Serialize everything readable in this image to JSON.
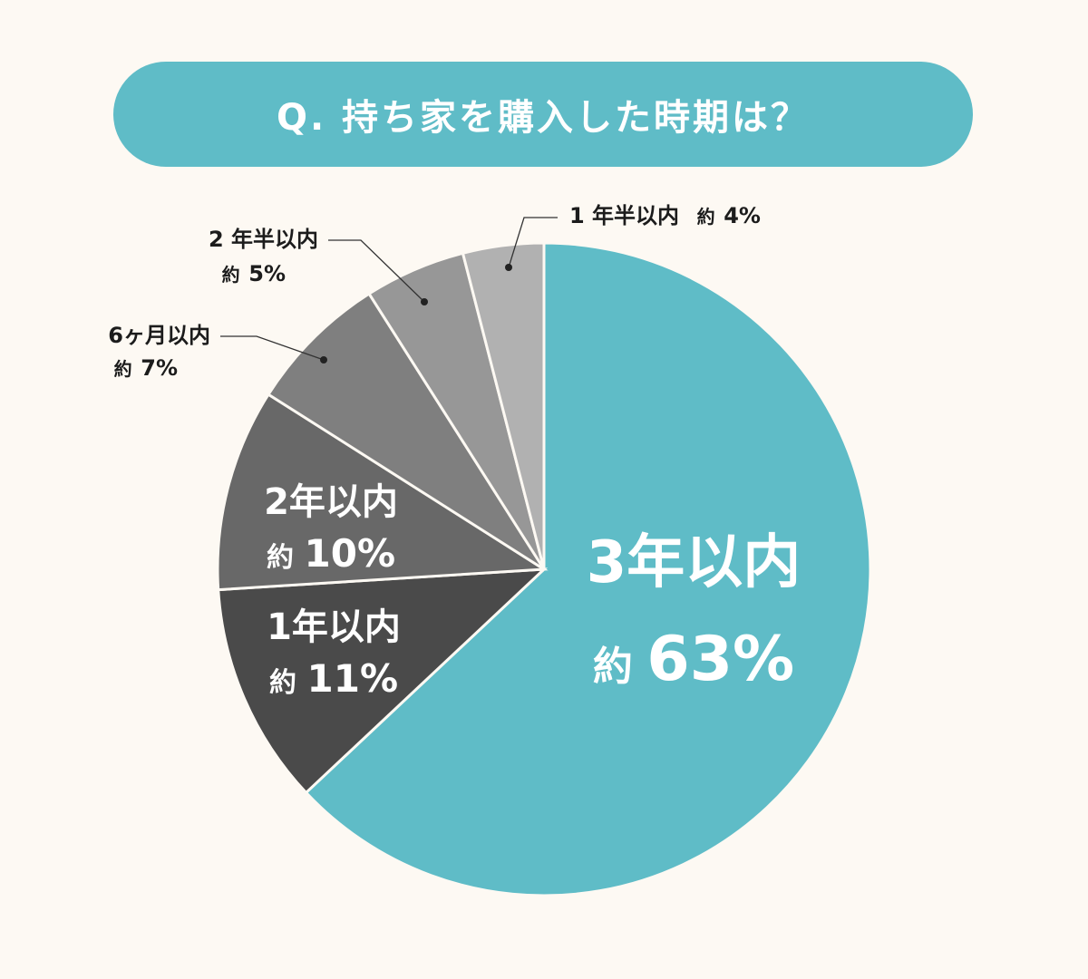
{
  "header": {
    "title": "Q. 持ち家を購入した時期は？"
  },
  "chart_data": {
    "type": "pie",
    "title": "Q. 持ち家を購入した時期は？",
    "prefix": "約",
    "slices": [
      {
        "label": "3年以内",
        "value": 63,
        "value_text": "63%",
        "color": "#5fbcc7"
      },
      {
        "label": "1年以内",
        "value": 11,
        "value_text": "11%",
        "color": "#4a4a4a"
      },
      {
        "label": "2年以内",
        "value": 10,
        "value_text": "10%",
        "color": "#686868"
      },
      {
        "label": "6ヶ月以内",
        "value": 7,
        "value_text": "7%",
        "color": "#7f7f7f"
      },
      {
        "label": "2 年半以内",
        "value": 5,
        "value_text": "5%",
        "color": "#979797"
      },
      {
        "label": "1 年半以内",
        "value": 4,
        "value_text": "4%",
        "color": "#b1b1b1"
      }
    ],
    "start": "12 o'clock",
    "direction": "clockwise",
    "legend": "none"
  }
}
